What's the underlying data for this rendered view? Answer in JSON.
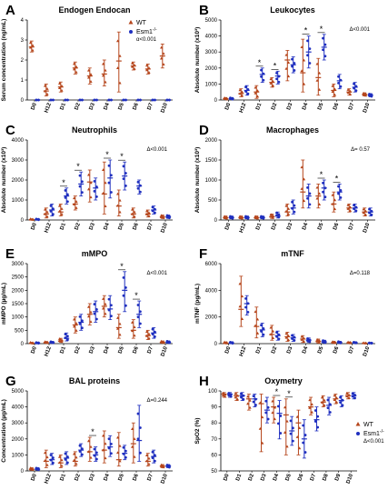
{
  "figure": {
    "background": "#ffffff"
  },
  "colors": {
    "wt": "#b5451b",
    "esm1": "#1f2fbf",
    "fill_wt": "#b5451b",
    "fill_esm1": "#1f2fbf"
  },
  "legend": {
    "wt": "WT",
    "esm1": "Esm1",
    "esm1_sup": "-/-"
  },
  "chart_data": [
    {
      "type": "scatter",
      "letter": "A",
      "title": "Endogen Endocan",
      "ylabel": "Serum concentration (ng/mL)",
      "ylim": [
        0,
        4
      ],
      "yticks": [
        "0",
        "1",
        "2",
        "3",
        "4"
      ],
      "categories": [
        "D0",
        "H12",
        "D1",
        "D2",
        "D3",
        "D4",
        "D5",
        "D6",
        "D7",
        "D10"
      ],
      "stat": "α<0.001",
      "legend": true,
      "significance": [],
      "series": [
        {
          "name": "WT",
          "mean": [
            2.65,
            0.45,
            0.65,
            1.6,
            1.2,
            1.3,
            1.95,
            1.7,
            1.55,
            2.2
          ],
          "lo": [
            2.4,
            0.2,
            0.4,
            1.3,
            0.8,
            0.7,
            0.4,
            1.5,
            1.3,
            1.6
          ],
          "hi": [
            2.95,
            0.8,
            0.9,
            1.9,
            1.6,
            2.0,
            3.4,
            1.9,
            1.8,
            2.8
          ]
        },
        {
          "name": "Esm1",
          "mean": [
            0,
            0,
            0,
            0,
            0,
            0,
            0,
            0,
            0,
            0
          ],
          "lo": [
            0,
            0,
            0,
            0,
            0,
            0,
            0,
            0,
            0,
            0
          ],
          "hi": [
            0,
            0,
            0,
            0,
            0,
            0,
            0,
            0,
            0,
            0
          ]
        }
      ]
    },
    {
      "type": "scatter",
      "letter": "B",
      "title": "Leukocytes",
      "ylabel": "Absolute number (x10³)",
      "ylim": [
        0,
        5000
      ],
      "yticks": [
        "0",
        "1000",
        "2000",
        "3000",
        "4000",
        "5000"
      ],
      "categories": [
        "D0",
        "H12",
        "D1",
        "D2",
        "D3",
        "D4",
        "D5",
        "D6",
        "D7",
        "D10"
      ],
      "stat": "Δ<0.001",
      "legend": false,
      "significance": [
        2,
        3,
        5,
        6
      ],
      "series": [
        {
          "name": "WT",
          "mean": [
            80,
            400,
            500,
            1100,
            2500,
            1700,
            1400,
            600,
            500,
            350
          ],
          "lo": [
            30,
            200,
            100,
            800,
            1200,
            500,
            300,
            200,
            300,
            250
          ],
          "hi": [
            150,
            700,
            900,
            1400,
            3100,
            3800,
            2600,
            1000,
            700,
            450
          ]
        },
        {
          "name": "Esm1",
          "mean": [
            80,
            600,
            1600,
            1500,
            2200,
            3000,
            3300,
            1200,
            800,
            300
          ],
          "lo": [
            30,
            300,
            1100,
            1000,
            1700,
            2000,
            2500,
            700,
            500,
            200
          ],
          "hi": [
            150,
            900,
            2000,
            1800,
            2700,
            4000,
            4100,
            1600,
            1100,
            400
          ]
        }
      ]
    },
    {
      "type": "scatter",
      "letter": "C",
      "title": "Neutrophils",
      "ylabel": "Absolute number (x10³)",
      "ylim": [
        0,
        4000
      ],
      "yticks": [
        "0",
        "1000",
        "2000",
        "3000",
        "4000"
      ],
      "categories": [
        "D0",
        "H12",
        "D1",
        "D2",
        "D3",
        "D4",
        "D5",
        "D6",
        "D7",
        "D10"
      ],
      "stat": "Δ<0.001",
      "legend": false,
      "significance": [
        2,
        3,
        5,
        6
      ],
      "series": [
        {
          "name": "WT",
          "mean": [
            20,
            300,
            400,
            800,
            1900,
            1300,
            700,
            300,
            300,
            150
          ],
          "lo": [
            5,
            100,
            200,
            500,
            900,
            300,
            200,
            100,
            150,
            80
          ],
          "hi": [
            60,
            600,
            800,
            1200,
            2500,
            2900,
            1500,
            600,
            500,
            250
          ]
        },
        {
          "name": "Esm1",
          "mean": [
            20,
            500,
            1200,
            1800,
            1600,
            2100,
            2200,
            1700,
            500,
            150
          ],
          "lo": [
            5,
            200,
            800,
            1200,
            1000,
            1100,
            1500,
            1300,
            300,
            80
          ],
          "hi": [
            60,
            800,
            1600,
            2400,
            2100,
            3000,
            2900,
            2000,
            700,
            250
          ]
        }
      ]
    },
    {
      "type": "scatter",
      "letter": "D",
      "title": "Macrophages",
      "ylabel": "Absolute number (x10³)",
      "ylim": [
        0,
        2000
      ],
      "yticks": [
        "0",
        "500",
        "1000",
        "1500",
        "2000"
      ],
      "categories": [
        "D0",
        "H12",
        "D1",
        "D2",
        "D3",
        "D4",
        "D5",
        "D6",
        "D7",
        "D10"
      ],
      "stat": "Δ= 0.57",
      "legend": false,
      "significance": [
        6,
        7
      ],
      "series": [
        {
          "name": "WT",
          "mean": [
            60,
            60,
            60,
            80,
            200,
            700,
            600,
            400,
            300,
            200
          ],
          "lo": [
            30,
            30,
            30,
            40,
            100,
            300,
            300,
            200,
            200,
            100
          ],
          "hi": [
            100,
            100,
            100,
            150,
            400,
            1500,
            900,
            700,
            400,
            300
          ]
        },
        {
          "name": "Esm1",
          "mean": [
            60,
            60,
            60,
            100,
            300,
            600,
            800,
            700,
            300,
            200
          ],
          "lo": [
            30,
            30,
            30,
            50,
            150,
            300,
            500,
            500,
            200,
            100
          ],
          "hi": [
            100,
            100,
            100,
            200,
            500,
            900,
            1000,
            900,
            400,
            300
          ]
        }
      ]
    },
    {
      "type": "scatter",
      "letter": "E",
      "title": "mMPO",
      "ylabel": "mMPO (µg/mL)",
      "ylim": [
        0,
        3000
      ],
      "yticks": [
        "0",
        "500",
        "1000",
        "1500",
        "2000",
        "2500",
        "3000"
      ],
      "categories": [
        "D0",
        "H12",
        "D1",
        "D2",
        "D3",
        "D4",
        "D5",
        "D6",
        "D7",
        "D10"
      ],
      "stat": "Δ<0.001",
      "legend": false,
      "significance": [
        6,
        7
      ],
      "series": [
        {
          "name": "WT",
          "mean": [
            20,
            40,
            100,
            700,
            1100,
            1400,
            600,
            500,
            300,
            50
          ],
          "lo": [
            5,
            20,
            50,
            400,
            700,
            1000,
            200,
            200,
            150,
            20
          ],
          "hi": [
            50,
            80,
            200,
            1000,
            1500,
            1800,
            1100,
            900,
            500,
            100
          ]
        },
        {
          "name": "Esm1",
          "mean": [
            20,
            40,
            200,
            800,
            1200,
            1300,
            2000,
            1100,
            400,
            50
          ],
          "lo": [
            5,
            20,
            100,
            500,
            800,
            900,
            1200,
            600,
            200,
            20
          ],
          "hi": [
            50,
            80,
            400,
            1100,
            1600,
            1800,
            2700,
            1600,
            600,
            100
          ]
        }
      ]
    },
    {
      "type": "scatter",
      "letter": "F",
      "title": "mTNF",
      "ylabel": "mTNF (pg/mL)",
      "ylim": [
        0,
        7000
      ],
      "yticks": [
        "0",
        "2000",
        "4000",
        "6000"
      ],
      "categories": [
        "D0",
        "H12",
        "D1",
        "D2",
        "D3",
        "D4",
        "D5",
        "D6",
        "D7",
        "D10"
      ],
      "stat": "Δ=0.118",
      "legend": false,
      "significance": [],
      "series": [
        {
          "name": "WT",
          "mean": [
            50,
            3000,
            1500,
            800,
            600,
            400,
            200,
            100,
            80,
            50
          ],
          "lo": [
            10,
            1500,
            500,
            300,
            200,
            100,
            50,
            30,
            30,
            20
          ],
          "hi": [
            150,
            5900,
            3200,
            1600,
            1000,
            700,
            400,
            200,
            150,
            80
          ]
        },
        {
          "name": "Esm1",
          "mean": [
            50,
            3500,
            1200,
            700,
            500,
            300,
            150,
            100,
            80,
            50
          ],
          "lo": [
            10,
            2500,
            600,
            300,
            200,
            100,
            50,
            30,
            30,
            20
          ],
          "hi": [
            150,
            4200,
            1800,
            1100,
            800,
            500,
            300,
            200,
            150,
            80
          ]
        }
      ]
    },
    {
      "type": "scatter",
      "letter": "G",
      "title": "BAL proteins",
      "ylabel": "Concentration (µg/mL)",
      "ylim": [
        0,
        5000
      ],
      "yticks": [
        "0",
        "1000",
        "2000",
        "3000",
        "4000",
        "5000"
      ],
      "categories": [
        "D0",
        "H12",
        "D1",
        "D2",
        "D3",
        "D4",
        "D5",
        "D6",
        "D7",
        "D10"
      ],
      "stat": "Δ=0.244",
      "legend": false,
      "significance": [
        4
      ],
      "series": [
        {
          "name": "WT",
          "mean": [
            100,
            600,
            500,
            600,
            1200,
            1300,
            700,
            1700,
            600,
            300
          ],
          "lo": [
            50,
            200,
            200,
            300,
            600,
            500,
            300,
            500,
            300,
            200
          ],
          "hi": [
            200,
            1300,
            1000,
            1200,
            2100,
            2500,
            2400,
            3000,
            1100,
            400
          ]
        },
        {
          "name": "Esm1",
          "mean": [
            100,
            700,
            800,
            1300,
            1000,
            1500,
            1100,
            1900,
            900,
            300
          ],
          "lo": [
            50,
            400,
            400,
            900,
            600,
            900,
            700,
            600,
            500,
            200
          ],
          "hi": [
            200,
            1100,
            1200,
            1700,
            1500,
            2200,
            1600,
            4100,
            1300,
            400
          ]
        }
      ]
    },
    {
      "type": "scatter",
      "letter": "H",
      "title": "Oxymetry",
      "ylabel": "SpO2 (%)",
      "ylim": [
        50,
        100
      ],
      "yticks": [
        "50",
        "60",
        "70",
        "80",
        "90",
        "100"
      ],
      "categories": [
        "D0",
        "D1",
        "D2",
        "D3",
        "D4",
        "D5",
        "D6",
        "D7",
        "D8",
        "D9",
        "D10"
      ],
      "stat": "Δ<0.001",
      "legend": true,
      "significance": [
        4,
        5
      ],
      "series": [
        {
          "name": "WT",
          "mean": [
            98,
            97,
            95,
            92,
            90,
            85,
            80,
            90,
            93,
            95,
            97
          ],
          "lo": [
            96,
            94,
            88,
            62,
            80,
            60,
            60,
            85,
            90,
            92,
            95
          ],
          "hi": [
            99,
            99,
            98,
            98,
            96,
            95,
            88,
            96,
            97,
            98,
            99
          ]
        },
        {
          "name": "Esm1",
          "mean": [
            98,
            97,
            95,
            88,
            86,
            75,
            70,
            82,
            91,
            94,
            97
          ],
          "lo": [
            96,
            94,
            90,
            80,
            70,
            66,
            58,
            75,
            85,
            90,
            95
          ],
          "hi": [
            99,
            99,
            98,
            96,
            94,
            84,
            82,
            90,
            96,
            97,
            99
          ]
        }
      ]
    }
  ]
}
